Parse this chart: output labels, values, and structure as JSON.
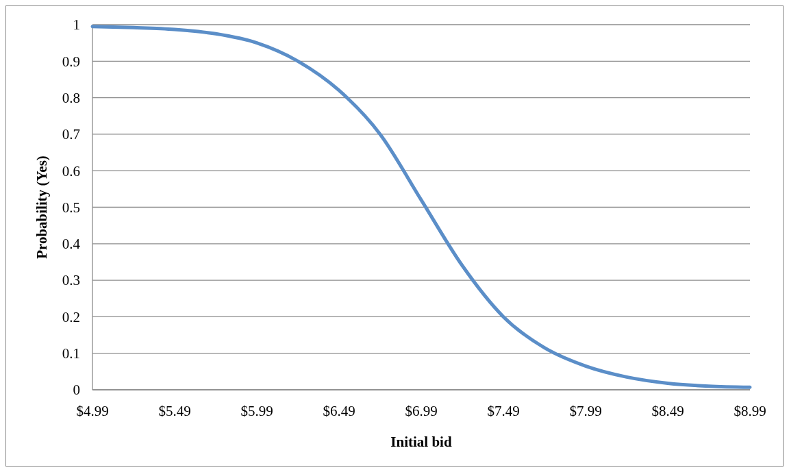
{
  "chart_data": {
    "type": "line",
    "xlabel": "Initial bid",
    "ylabel": "Probability (Yes)",
    "x": [
      4.99,
      5.24,
      5.49,
      5.74,
      5.99,
      6.24,
      6.49,
      6.74,
      6.99,
      7.24,
      7.49,
      7.74,
      7.99,
      8.24,
      8.49,
      8.74,
      8.99
    ],
    "series": [
      {
        "color": "#5b8ec8",
        "values": [
          0.995,
          0.992,
          0.987,
          0.975,
          0.95,
          0.9,
          0.82,
          0.7,
          0.52,
          0.34,
          0.2,
          0.115,
          0.065,
          0.035,
          0.018,
          0.01,
          0.007
        ]
      }
    ],
    "xlim": [
      4.99,
      8.99
    ],
    "xticks": [
      {
        "value": 4.99,
        "label": "$4.99"
      },
      {
        "value": 5.49,
        "label": "$5.49"
      },
      {
        "value": 5.99,
        "label": "$5.99"
      },
      {
        "value": 6.49,
        "label": "$6.49"
      },
      {
        "value": 6.99,
        "label": "$6.99"
      },
      {
        "value": 7.49,
        "label": "$7.49"
      },
      {
        "value": 7.99,
        "label": "$7.99"
      },
      {
        "value": 8.49,
        "label": "$8.49"
      },
      {
        "value": 8.99,
        "label": "$8.99"
      }
    ],
    "ylim": [
      0,
      1
    ],
    "yticks": [
      0,
      0.1,
      0.2,
      0.3,
      0.4,
      0.5,
      0.6,
      0.7,
      0.8,
      0.9,
      1
    ],
    "grid": "y",
    "marker": "none",
    "line_style": "solid"
  }
}
